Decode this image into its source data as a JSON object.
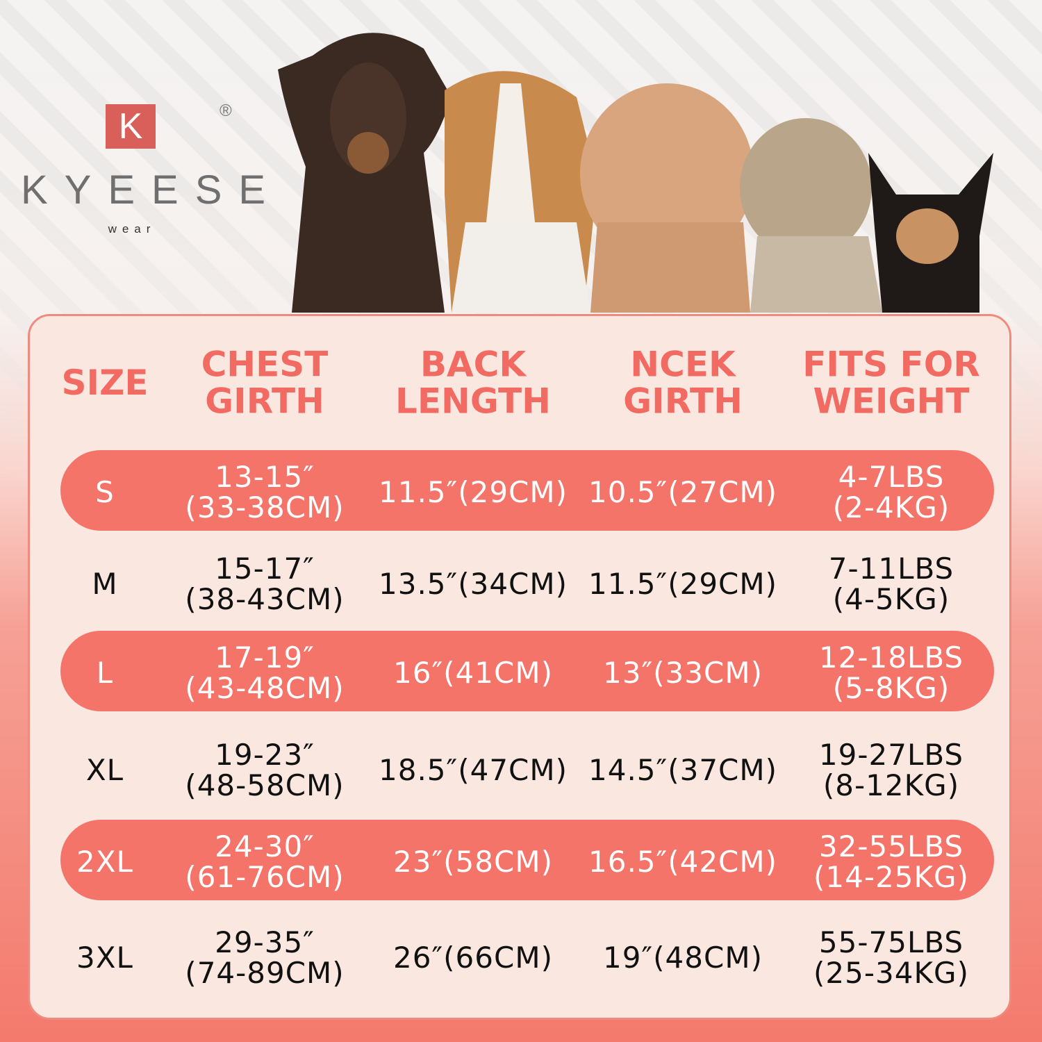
{
  "brand": {
    "logo_letter": "K",
    "name": "KYEESE",
    "sub": "wear",
    "registered": "®"
  },
  "colors": {
    "accent": "#f5746a",
    "panel": "#fae8e0",
    "header_text": "#f26b62"
  },
  "images": [
    "doberman",
    "beagle",
    "poodle",
    "schnauzer-mix",
    "chihuahua"
  ],
  "table": {
    "headers": [
      "SIZE",
      "CHEST\nGIRTH",
      "BACK\nLENGTH",
      "NCEK\nGIRTH",
      "FITS FOR\nWEIGHT"
    ],
    "rows": [
      {
        "size": "S",
        "chest": "13-15″\n(33-38CM)",
        "back": "11.5″(29CM)",
        "neck": "10.5″(27CM)",
        "weight": "4-7LBS\n(2-4KG)",
        "highlight": true
      },
      {
        "size": "M",
        "chest": "15-17″\n(38-43CM)",
        "back": "13.5″(34CM)",
        "neck": "11.5″(29CM)",
        "weight": "7-11LBS\n(4-5KG)",
        "highlight": false
      },
      {
        "size": "L",
        "chest": "17-19″\n(43-48CM)",
        "back": "16″(41CM)",
        "neck": "13″(33CM)",
        "weight": "12-18LBS\n(5-8KG)",
        "highlight": true
      },
      {
        "size": "XL",
        "chest": "19-23″\n(48-58CM)",
        "back": "18.5″(47CM)",
        "neck": "14.5″(37CM)",
        "weight": "19-27LBS\n(8-12KG)",
        "highlight": false
      },
      {
        "size": "2XL",
        "chest": "24-30″\n(61-76CM)",
        "back": "23″(58CM)",
        "neck": "16.5″(42CM)",
        "weight": "32-55LBS\n(14-25KG)",
        "highlight": true
      },
      {
        "size": "3XL",
        "chest": "29-35″\n(74-89CM)",
        "back": "26″(66CM)",
        "neck": "19″(48CM)",
        "weight": "55-75LBS\n(25-34KG)",
        "highlight": false
      }
    ]
  }
}
